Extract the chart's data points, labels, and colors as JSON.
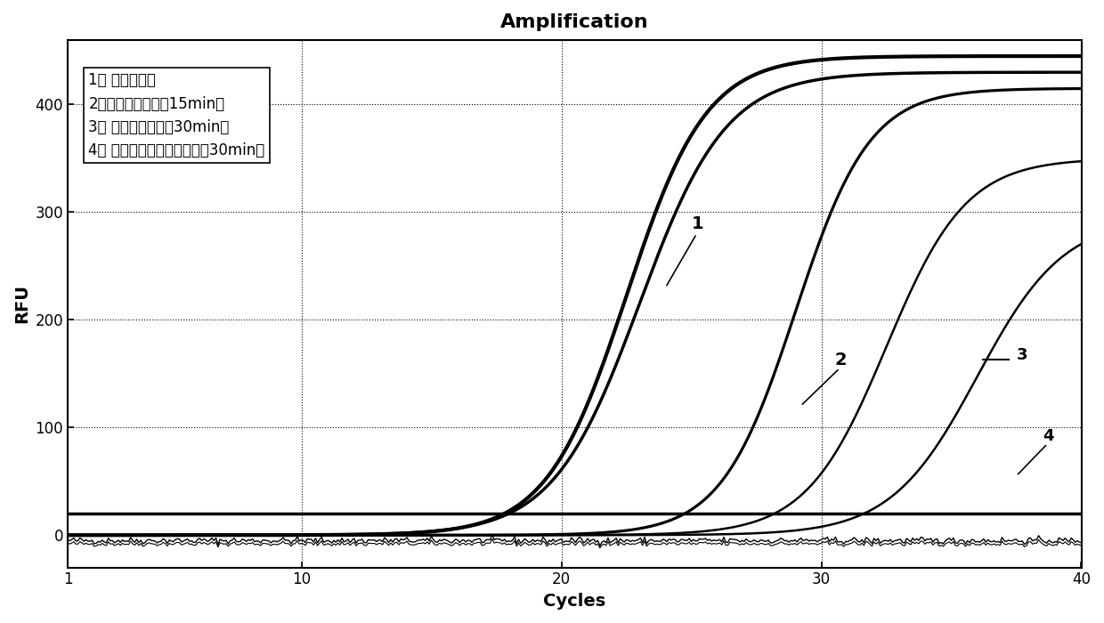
{
  "title": "Amplification",
  "xlabel": "Cycles",
  "ylabel": "RFU",
  "xlim": [
    1,
    40
  ],
  "ylim": [
    -30,
    460
  ],
  "yticks": [
    0,
    100,
    200,
    300,
    400
  ],
  "xticks": [
    1,
    10,
    20,
    30,
    40
  ],
  "threshold_y": 20,
  "legend_lines": [
    "1： 阳性对照；",
    "2：对比例试剂消毕15min；",
    "3： 实施例试剂消毕30min；",
    "4： 实施例试剂消毕时间大于30min。"
  ],
  "background_color": "#ffffff",
  "grid_color": "#000000",
  "line_color": "#000000"
}
